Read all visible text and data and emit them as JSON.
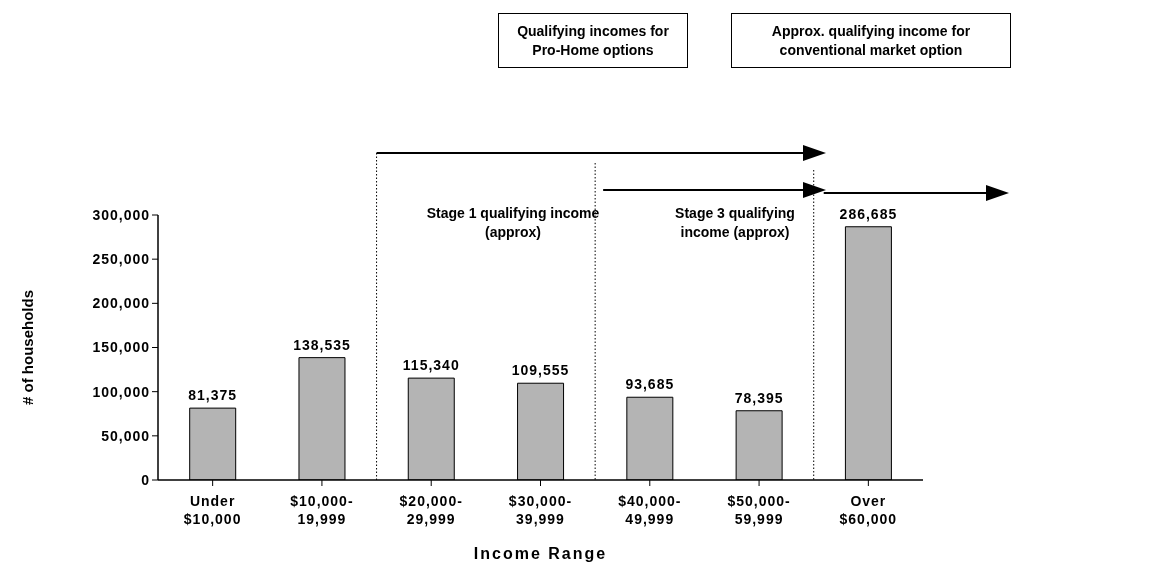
{
  "chart_data": {
    "type": "bar",
    "xlabel": "Income Range",
    "ylabel": "# of households",
    "categories": [
      "Under $10,000",
      "$10,000-19,999",
      "$20,000-29,999",
      "$30,000-39,999",
      "$40,000-49,999",
      "$50,000-59,999",
      "Over $60,000"
    ],
    "values": [
      81375,
      138535,
      115340,
      109555,
      93685,
      78395,
      286685
    ],
    "value_labels": [
      "81,375",
      "138,535",
      "115,340",
      "109,555",
      "93,685",
      "78,395",
      "286,685"
    ],
    "color": "#b4b4b4",
    "ylim": [
      0,
      300000
    ],
    "yticks": [
      {
        "value": 0,
        "label": "0"
      },
      {
        "value": 50000,
        "label": "50,000"
      },
      {
        "value": 100000,
        "label": "100,000"
      },
      {
        "value": 150000,
        "label": "150,000"
      },
      {
        "value": 200000,
        "label": "200,000"
      },
      {
        "value": 250000,
        "label": "250,000"
      },
      {
        "value": 300000,
        "label": "300,000"
      }
    ],
    "annotations": [
      "Qualifying incomes for Pro-Home options",
      "Approx. qualifying income for conventional market option",
      "Stage 1 qualifying income (approx)",
      "Stage 3 qualifying income (approx)"
    ]
  }
}
